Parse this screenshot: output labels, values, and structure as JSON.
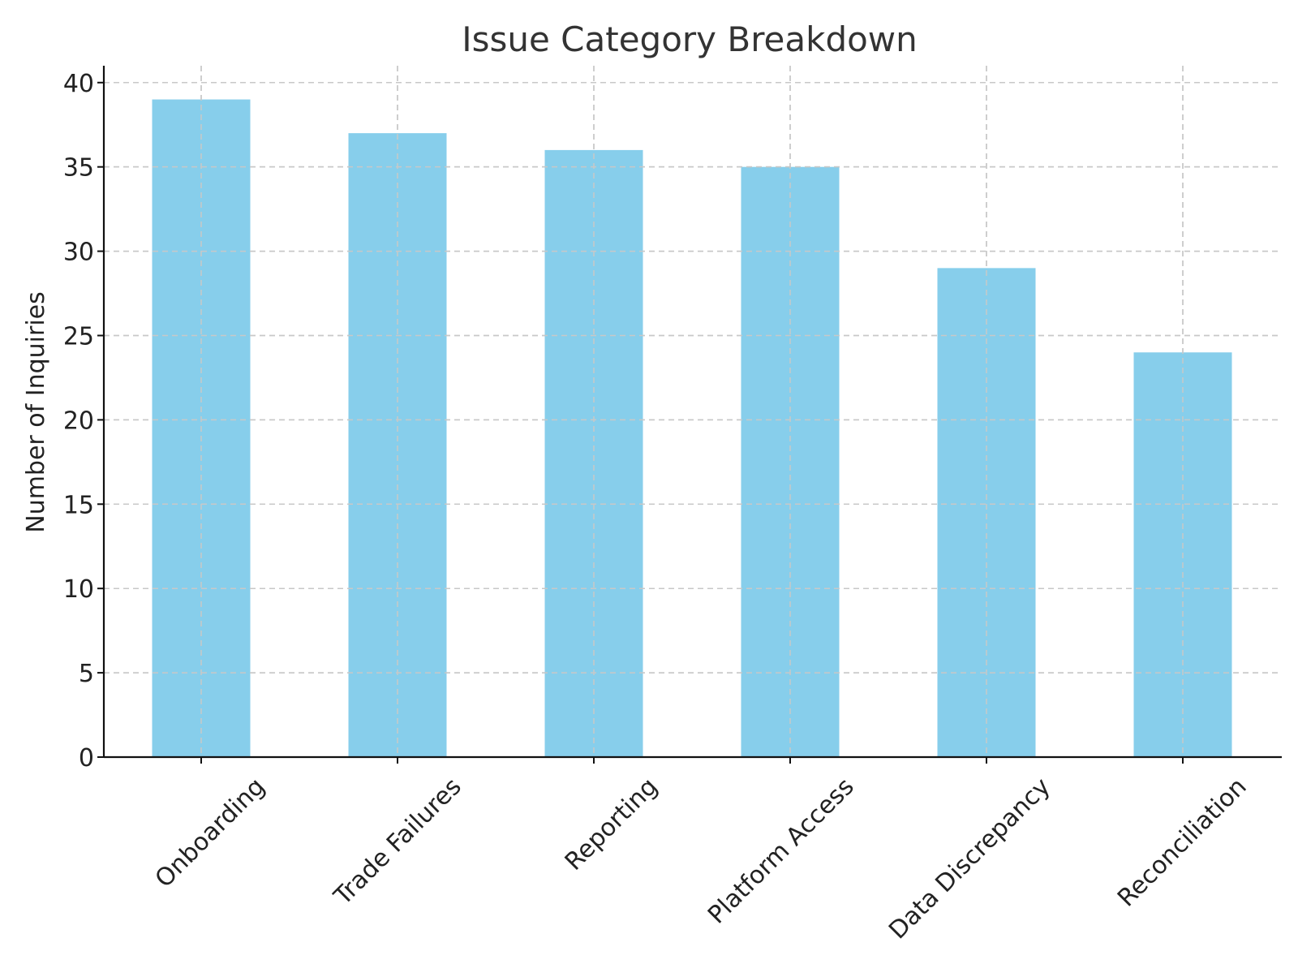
{
  "chart_data": {
    "type": "bar",
    "title": "Issue Category Breakdown",
    "xlabel": "",
    "ylabel": "Number of Inquiries",
    "categories": [
      "Onboarding",
      "Trade Failures",
      "Reporting",
      "Platform Access",
      "Data Discrepancy",
      "Reconciliation"
    ],
    "values": [
      39,
      37,
      36,
      35,
      29,
      24
    ],
    "ylim": [
      0,
      41
    ],
    "yticks": [
      0,
      5,
      10,
      15,
      20,
      25,
      30,
      35,
      40
    ],
    "grid": true,
    "bar_color": "#87CEEB"
  }
}
